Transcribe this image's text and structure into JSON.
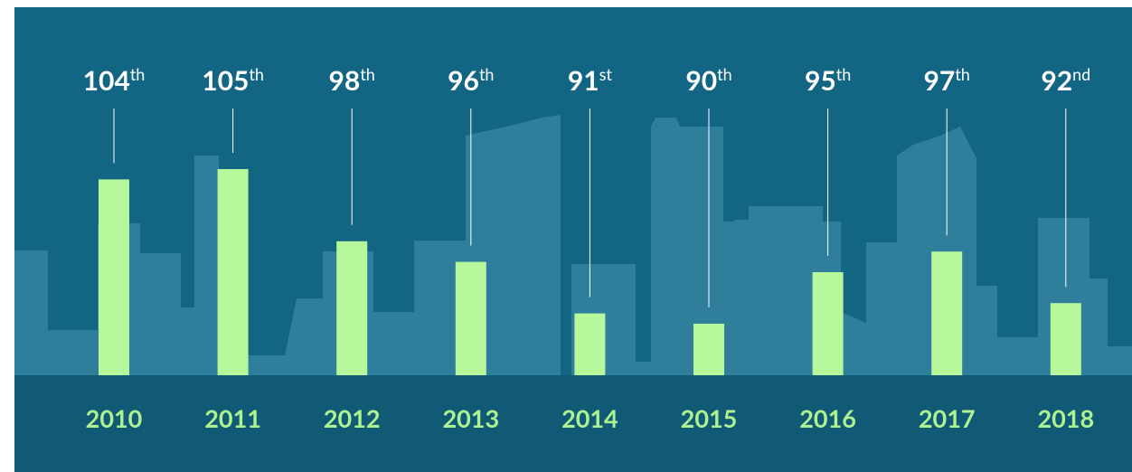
{
  "chart_data": {
    "type": "bar",
    "categories": [
      "2010",
      "2011",
      "2012",
      "2013",
      "2014",
      "2015",
      "2016",
      "2017",
      "2018"
    ],
    "values": [
      104,
      105,
      98,
      96,
      91,
      90,
      95,
      97,
      92
    ],
    "value_labels": [
      "104th",
      "105th",
      "98th",
      "96th",
      "91st",
      "90th",
      "95th",
      "97th",
      "92nd"
    ],
    "color": "#b6f79c"
  }
}
